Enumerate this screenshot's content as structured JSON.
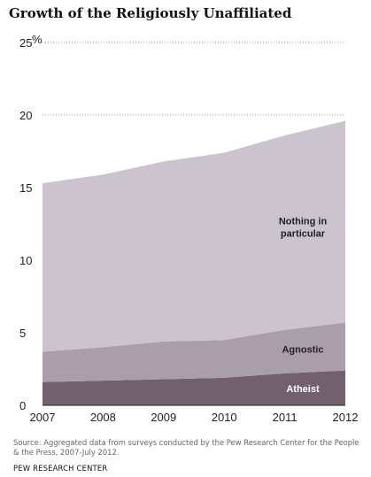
{
  "chart_data": {
    "type": "area",
    "stacked": true,
    "title": "Growth of the Religiously Unaffiliated",
    "x": [
      "2007",
      "2008",
      "2009",
      "2010",
      "2011",
      "2012"
    ],
    "ylim": [
      0,
      25
    ],
    "yticks": [
      "0",
      "5",
      "10",
      "15",
      "20",
      "25"
    ],
    "yunit": "%",
    "grid": "horizontal dotted",
    "series": [
      {
        "name": "Atheist",
        "values": [
          1.6,
          1.7,
          1.8,
          1.9,
          2.2,
          2.4
        ],
        "color": "#73606f",
        "label_color": "#ffffff"
      },
      {
        "name": "Agnostic",
        "values": [
          2.1,
          2.3,
          2.6,
          2.6,
          3.0,
          3.3
        ],
        "color": "#aa9eab",
        "label_color": "#222222"
      },
      {
        "name": "Nothing in particular",
        "label_lines": [
          "Nothing in",
          "particular"
        ],
        "values": [
          11.6,
          11.9,
          12.4,
          12.9,
          13.4,
          13.9
        ],
        "color": "#cbc3cd",
        "label_color": "#222222"
      }
    ]
  },
  "source": "Source: Aggregated data from surveys conducted by the Pew  Research Center for the People & the Press, 2007-July 2012.",
  "org": "PEW RESEARCH  CENTER"
}
